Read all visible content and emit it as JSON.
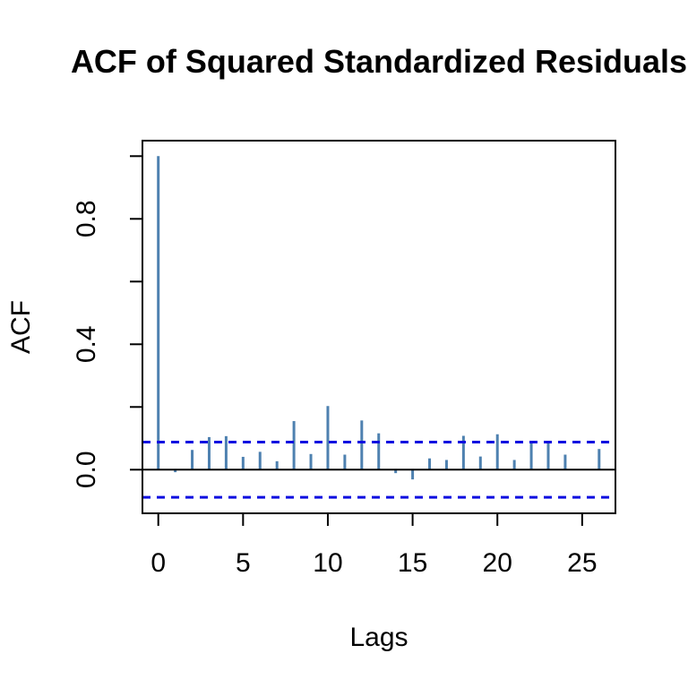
{
  "chart_data": {
    "type": "bar",
    "subtype": "acf-stem-plot",
    "title": "ACF of Squared Standardized Residuals",
    "xlabel": "Lags",
    "ylabel": "ACF",
    "x": [
      0,
      1,
      2,
      3,
      4,
      5,
      6,
      7,
      8,
      9,
      10,
      11,
      12,
      13,
      14,
      15,
      16,
      17,
      18,
      19,
      20,
      21,
      22,
      23,
      24,
      25,
      26
    ],
    "values": [
      1.0,
      -0.008,
      0.063,
      0.104,
      0.107,
      0.041,
      0.057,
      0.027,
      0.155,
      0.05,
      0.203,
      0.048,
      0.157,
      0.116,
      -0.011,
      -0.031,
      0.036,
      0.031,
      0.108,
      0.042,
      0.113,
      0.031,
      0.088,
      0.086,
      0.048,
      0.002,
      0.066
    ],
    "xticks": [
      0,
      5,
      10,
      15,
      20,
      25
    ],
    "yticks": [
      0.0,
      0.2,
      0.4,
      0.6,
      0.8,
      1.0
    ],
    "ytick_labels_shown": [
      "0.0",
      "0.4",
      "0.8"
    ],
    "xlim": [
      -0.9,
      27
    ],
    "ylim": [
      -0.14,
      1.05
    ],
    "grid": false,
    "legend": null,
    "confidence_bands": {
      "upper": 0.088,
      "lower": -0.088,
      "line_style": "dashed",
      "color": "#0e0ee0"
    },
    "spike_color": "#4e81b0",
    "axis_color": "#000000",
    "background_color": "#ffffff"
  }
}
